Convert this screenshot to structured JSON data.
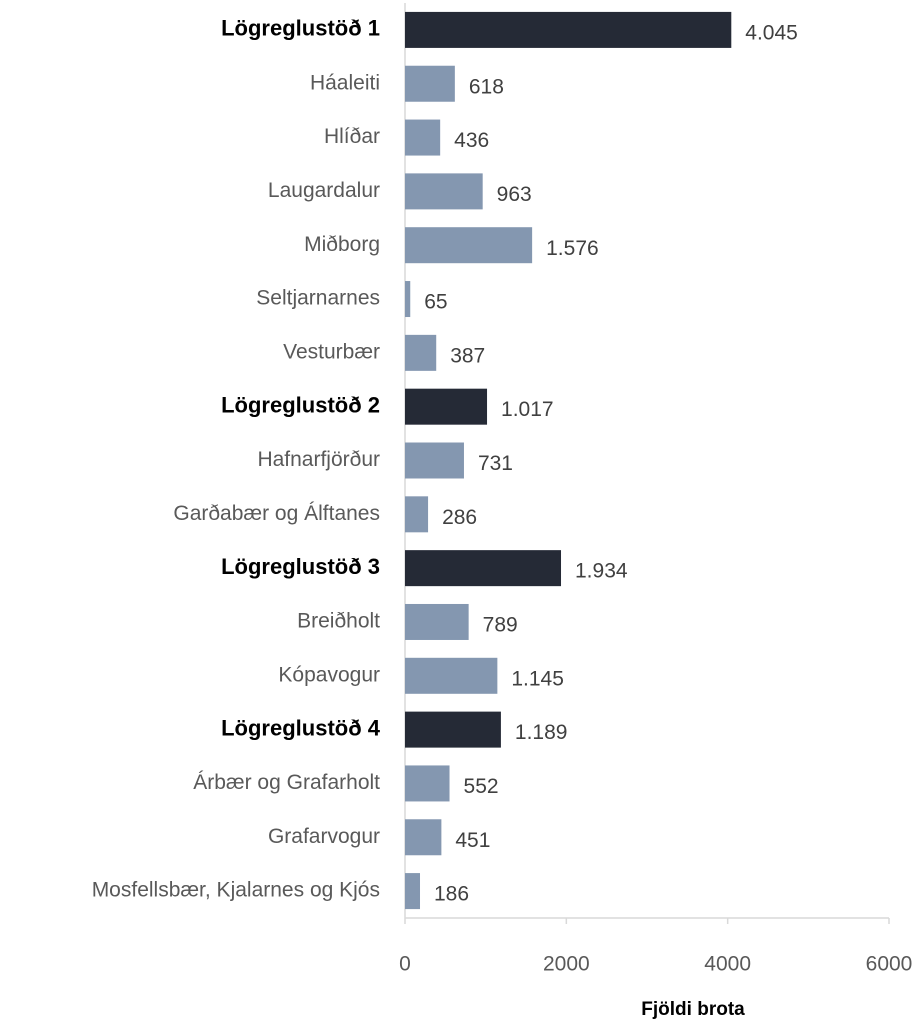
{
  "chart_data": {
    "type": "barh",
    "categories": [
      "Lögreglustöð 1",
      "Háaleiti",
      "Hlíðar",
      "Laugardalur",
      "Miðborg",
      "Seltjarnarnes",
      "Vesturbær",
      "Lögreglustöð 2",
      "Hafnarfjörður",
      "Garðabær og Álftanes",
      "Lögreglustöð 3",
      "Breiðholt",
      "Kópavogur",
      "Lögreglustöð 4",
      "Árbær og Grafarholt",
      "Grafarvogur",
      "Mosfellsbær, Kjalarnes og Kjós"
    ],
    "values": [
      4045,
      618,
      436,
      963,
      1576,
      65,
      387,
      1017,
      731,
      286,
      1934,
      789,
      1145,
      1189,
      552,
      451,
      186
    ],
    "value_labels": [
      "4.045",
      "618",
      "436",
      "963",
      "1.576",
      "65",
      "387",
      "1.017",
      "731",
      "286",
      "1.934",
      "789",
      "1.145",
      "1.189",
      "552",
      "451",
      "186"
    ],
    "colors": [
      "#252a36",
      "#8497b0",
      "#8497b0",
      "#8497b0",
      "#8497b0",
      "#8497b0",
      "#8497b0",
      "#252a36",
      "#8497b0",
      "#8497b0",
      "#252a36",
      "#8497b0",
      "#8497b0",
      "#252a36",
      "#8497b0",
      "#8497b0",
      "#8497b0"
    ],
    "highlight_color": "#252a36",
    "xlabel": "Fjöldi brota",
    "xlim": [
      0,
      6000
    ],
    "xticks": [
      0,
      2000,
      4000,
      6000
    ],
    "grid": false
  }
}
